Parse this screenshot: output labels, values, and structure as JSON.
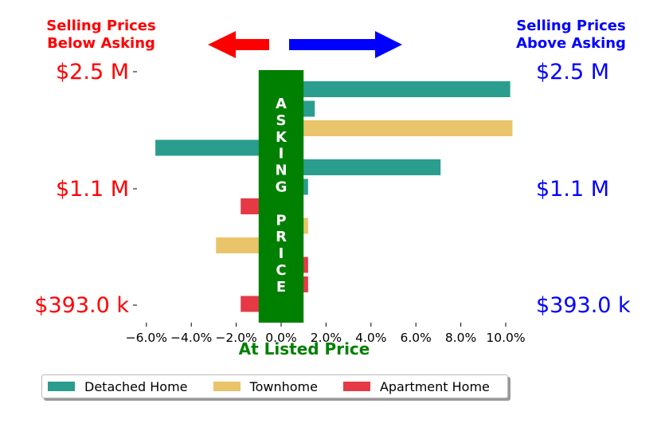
{
  "chart_data": {
    "type": "bar",
    "orientation": "horizontal",
    "title_left": [
      "Selling Prices",
      "Below Asking"
    ],
    "title_right": [
      "Selling Prices",
      "Above Asking"
    ],
    "xlabel": "At Listed Price",
    "center_band_label": "ASKING PRICE",
    "xlim": [
      -6.5,
      11.0
    ],
    "x_ticks": [
      -6,
      -4,
      -2,
      0,
      2,
      4,
      6,
      8,
      10
    ],
    "x_tick_labels": [
      "−6.0%",
      "−4.0%",
      "−2.0%",
      "0.0%",
      "2.0%",
      "4.0%",
      "6.0%",
      "8.0%",
      "10.0%"
    ],
    "asking_band": [
      -1.0,
      1.0
    ],
    "y_tick_labels_left": [
      {
        "label": "$2.5 M",
        "value": 2500000
      },
      {
        "label": "$1.1 M",
        "value": 1100000
      },
      {
        "label": "$393.0 k",
        "value": 393000
      }
    ],
    "y_tick_labels_right": [
      {
        "label": "$2.5 M",
        "value": 2500000
      },
      {
        "label": "$1.1 M",
        "value": 1100000
      },
      {
        "label": "$393.0 k",
        "value": 393000
      }
    ],
    "bars": [
      {
        "series": "Detached Home",
        "price": 2500000,
        "value": 10.2
      },
      {
        "series": "Detached Home",
        "price": 2300000,
        "value": 1.5
      },
      {
        "series": "Townhome",
        "price": 2100000,
        "value": 10.3
      },
      {
        "series": "Detached Home",
        "price": 1900000,
        "value": -5.6
      },
      {
        "series": "Detached Home",
        "price": 1500000,
        "value": 7.1
      },
      {
        "series": "Detached Home",
        "price": 1100000,
        "value": 1.2
      },
      {
        "series": "Apartment Home",
        "price": 950000,
        "value": -1.8
      },
      {
        "series": "Townhome",
        "price": 850000,
        "value": 1.2
      },
      {
        "series": "Townhome",
        "price": 700000,
        "value": -2.9
      },
      {
        "series": "Apartment Home",
        "price": 600000,
        "value": 1.2
      },
      {
        "series": "Apartment Home",
        "price": 500000,
        "value": 1.2
      },
      {
        "series": "Apartment Home",
        "price": 393000,
        "value": -1.8
      }
    ],
    "series": [
      {
        "name": "Detached Home",
        "color": "#2a9d8f"
      },
      {
        "name": "Townhome",
        "color": "#e9c46a"
      },
      {
        "name": "Apartment Home",
        "color": "#e63946"
      }
    ],
    "legend_position": "bottom",
    "grid": false,
    "colors": {
      "below": "#ff0000",
      "above": "#0000ff",
      "asking": "#008000"
    }
  }
}
